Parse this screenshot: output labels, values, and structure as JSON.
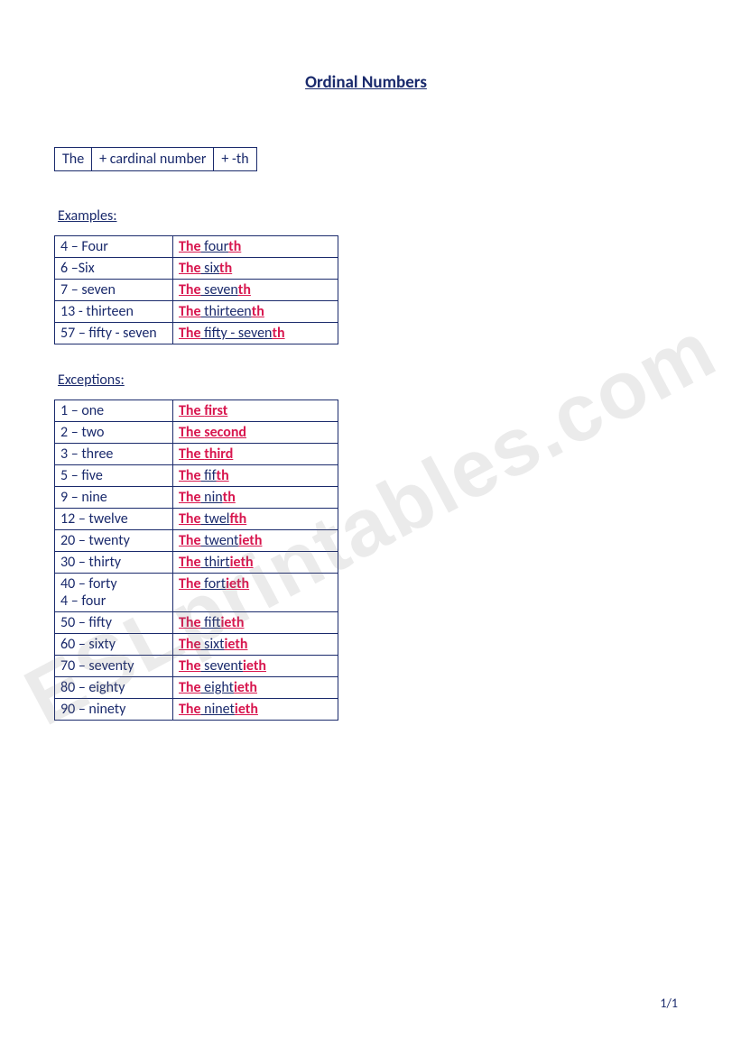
{
  "title": "Ordinal Numbers",
  "formula": {
    "c1": "The",
    "c2": "+ cardinal number",
    "c3": "+  -th"
  },
  "examples_label": "Examples:",
  "examples": [
    {
      "left": "4 – Four",
      "the": "The",
      "stem": " four",
      "suffix": "th"
    },
    {
      "left": "6 –Six",
      "the": "The",
      "stem": " six",
      "suffix": "th"
    },
    {
      "left": "7 – seven",
      "the": "The",
      "stem": " seven",
      "suffix": "th"
    },
    {
      "left": "13 - thirteen",
      "the": "The",
      "stem": " thirteen",
      "suffix": "th"
    },
    {
      "left": "57 – fifty - seven",
      "the": "The",
      "stem": " fifty - seven",
      "suffix": "th"
    }
  ],
  "exceptions_label": "Exceptions:",
  "exceptions": [
    {
      "left": "1 – one",
      "the": "The ",
      "full": "first"
    },
    {
      "left": "2 – two",
      "the": "The ",
      "full": "second"
    },
    {
      "left": "3 – three",
      "the": "The ",
      "full": "third"
    },
    {
      "left": "5 – five",
      "the": "The",
      "stem": " fif",
      "suffix": "th"
    },
    {
      "left": "9 – nine",
      "the": "The",
      "stem": " nin",
      "suffix": "th"
    },
    {
      "left": "12 – twelve",
      "the": "The",
      "stem": " twel",
      "suffix": "fth"
    },
    {
      "left": "20 – twenty",
      "the": "The",
      "stem": " twent",
      "suffix": "ieth"
    },
    {
      "left": "30 – thirty",
      "the": "The",
      "stem": " thirt",
      "suffix": "ieth"
    },
    {
      "left": "40 – forty\n4 – four",
      "the": "The",
      "stem": " fort",
      "suffix": "ieth",
      "multiline": true
    },
    {
      "left": "50 – fifty",
      "the": "The",
      "stem": " fift",
      "suffix": "ieth"
    },
    {
      "left": "60 – sixty",
      "the": "The",
      "stem": " sixt",
      "suffix": "ieth"
    },
    {
      "left": "70 – seventy",
      "the": "The",
      "stem": " sevent",
      "suffix": "ieth"
    },
    {
      "left": "80 – eighty",
      "the": "The",
      "stem": " eight",
      "suffix": "ieth"
    },
    {
      "left": "90 – ninety",
      "the": "The",
      "stem": " ninet",
      "suffix": "ieth"
    }
  ],
  "page_number": "1/1",
  "watermark": "ESLprintables.com",
  "colors": {
    "text": "#1a2a6c",
    "accent": "#d8174f",
    "border": "#1a2a6c",
    "background": "#ffffff",
    "watermark": "rgba(120,120,120,0.15)"
  }
}
